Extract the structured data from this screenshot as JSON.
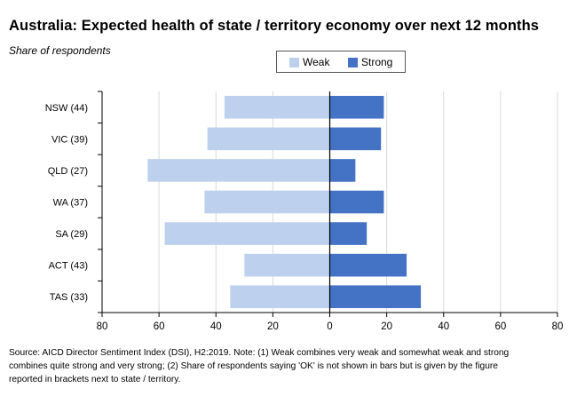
{
  "title": "Australia: Expected health of state / territory economy over next 12 months",
  "subtitle": "Share of respondents",
  "colors": {
    "weak": "#bdd1ef",
    "strong": "#4472c4",
    "axis": "#000000",
    "grid": "#d9d9d9"
  },
  "chart_data": {
    "type": "bar",
    "orientation": "horizontal",
    "title": "Australia: Expected health of state / territory economy over next 12 months",
    "subtitle": "Share of respondents",
    "categories": [
      "NSW (44)",
      "VIC (39)",
      "QLD (27)",
      "WA (37)",
      "SA (29)",
      "ACT (43)",
      "TAS (33)"
    ],
    "series": [
      {
        "name": "Weak",
        "values": [
          37,
          43,
          64,
          44,
          58,
          30,
          35
        ],
        "direction": "left"
      },
      {
        "name": "Strong",
        "values": [
          19,
          18,
          9,
          19,
          13,
          27,
          32
        ],
        "direction": "right"
      }
    ],
    "xlim": [
      -80,
      80
    ],
    "x_ticks": [
      -80,
      -60,
      -40,
      -20,
      0,
      20,
      40,
      60,
      80
    ],
    "x_tick_labels": [
      "80",
      "60",
      "40",
      "20",
      "0",
      "20",
      "40",
      "60",
      "80"
    ],
    "grid": true,
    "legend": "top-center"
  },
  "source_lines": [
    "Source: AICD Director Sentiment Index (DSI), H2:2019.  Note: (1) Weak combines very weak and somewhat weak and strong",
    "combines quite strong and very strong; (2) Share of respondents saying 'OK' is not shown in bars but is given by the figure",
    "reported in brackets next to state / territory."
  ]
}
